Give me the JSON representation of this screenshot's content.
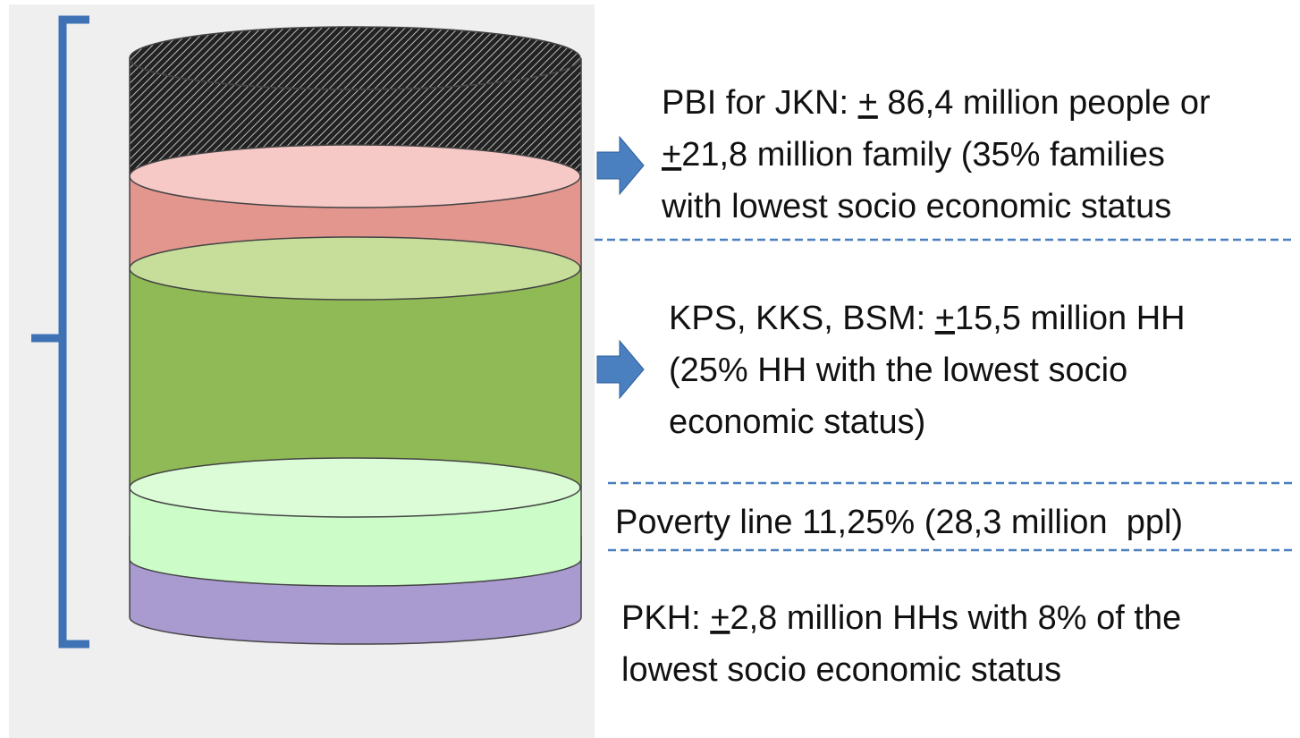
{
  "labels": [
    {
      "lines": [
        [
          "PBI for JKN: ",
          "+",
          " 86,4 million people or"
        ],
        [
          "+",
          "21,8 million family (35% families"
        ],
        [
          "with lowest socio economic status"
        ]
      ]
    },
    {
      "lines": [
        [
          "KPS, KKS, BSM: ",
          "+",
          "15,5 million HH"
        ],
        [
          "(25% HH with the lowest socio"
        ],
        [
          "economic status)"
        ]
      ]
    },
    {
      "lines": [
        [
          "Poverty line 11,25% (28,3 million  ppl)"
        ]
      ]
    },
    {
      "lines": [
        [
          "PKH: ",
          "+",
          "2,8 million HHs with 8% of the"
        ],
        [
          "lowest socio economic status"
        ]
      ]
    }
  ]
}
